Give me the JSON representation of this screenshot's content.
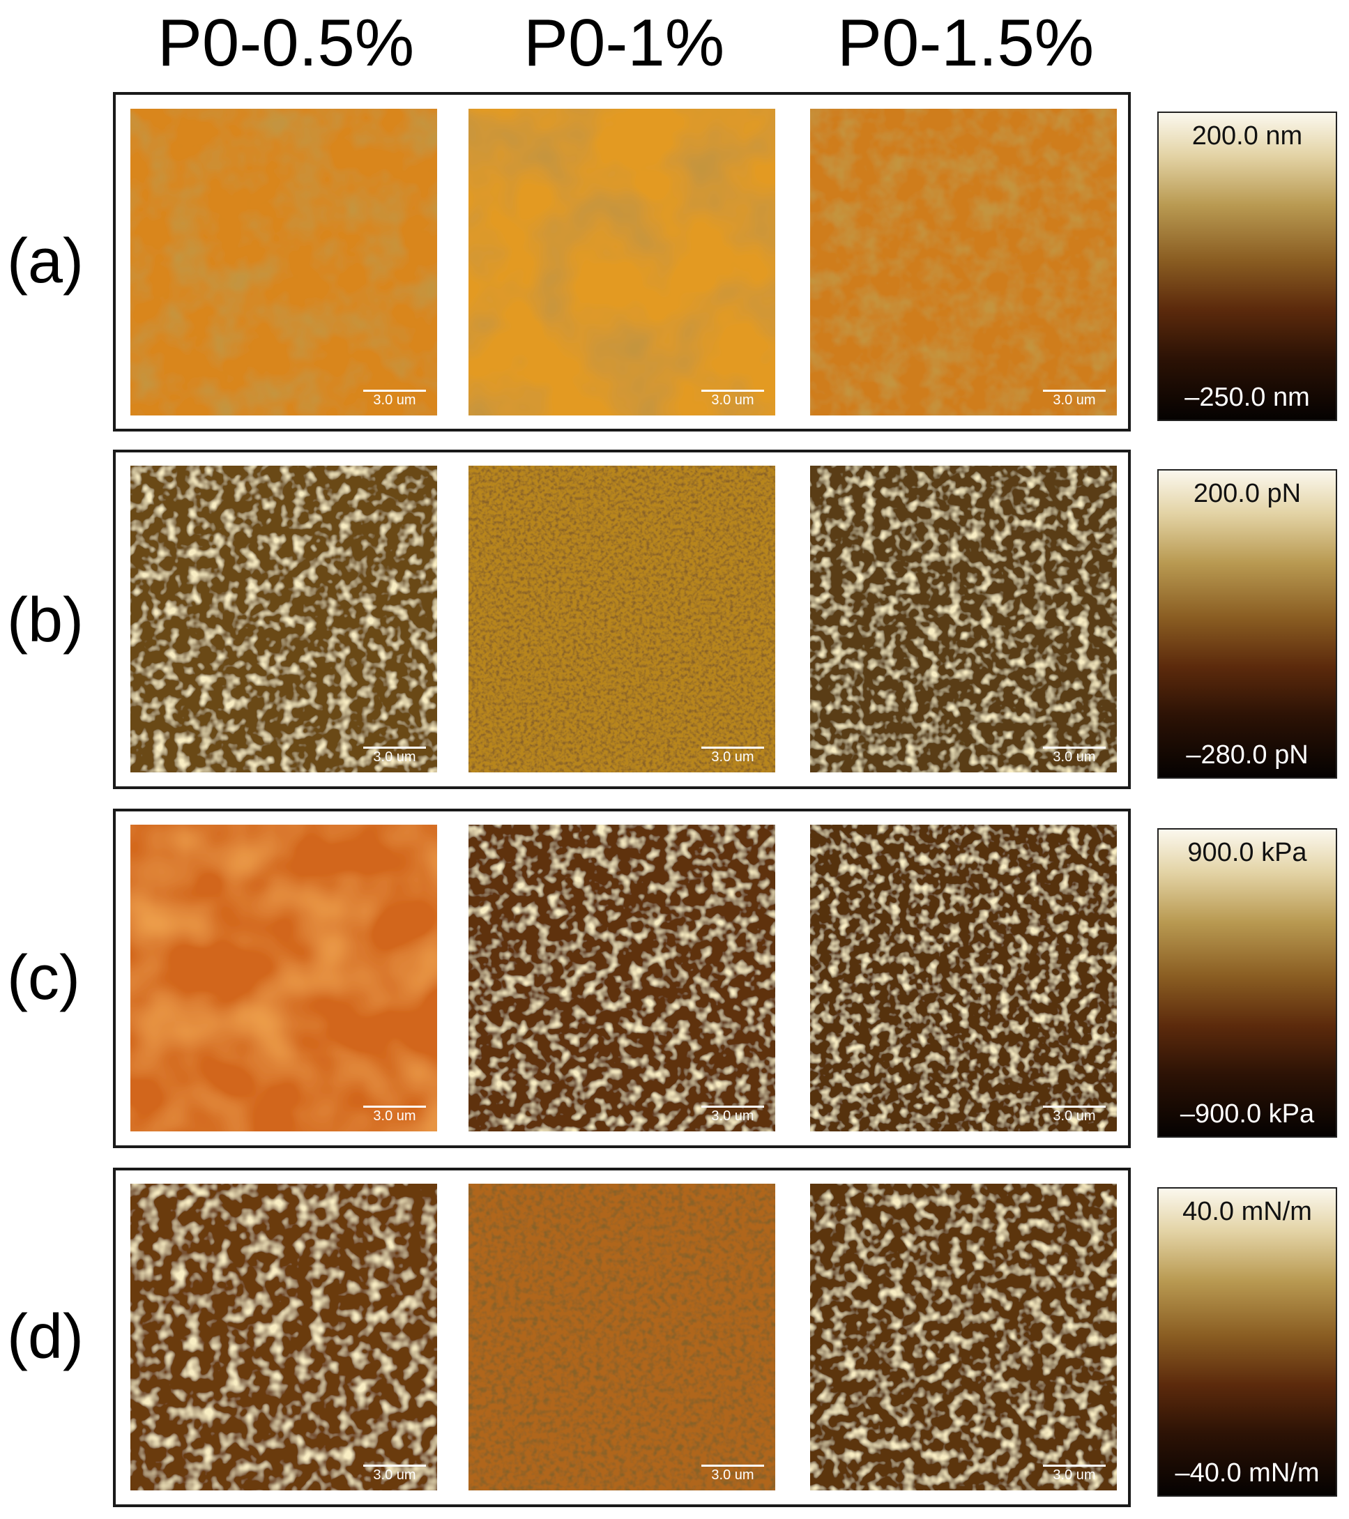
{
  "columns": [
    "P0-0.5%",
    "P0-1%",
    "P0-1.5%"
  ],
  "rows": [
    {
      "label": "(a)",
      "scale_max": "200.0 nm",
      "scale_min": "–250.0 nm"
    },
    {
      "label": "(b)",
      "scale_max": "200.0 pN",
      "scale_min": "–280.0 pN"
    },
    {
      "label": "(c)",
      "scale_max": "900.0 kPa",
      "scale_min": "–900.0 kPa"
    },
    {
      "label": "(d)",
      "scale_max": "40.0 mN/m",
      "scale_min": "–40.0 mN/m"
    }
  ],
  "scalebar_label": "3.0 um",
  "colors": {
    "colorbar_top": "#fbf8ee",
    "colorbar_mid": "#8a5d22",
    "colorbar_bottom": "#050201",
    "height_map_orange": "#d88a1e",
    "dark_pore": "#2a1306"
  }
}
